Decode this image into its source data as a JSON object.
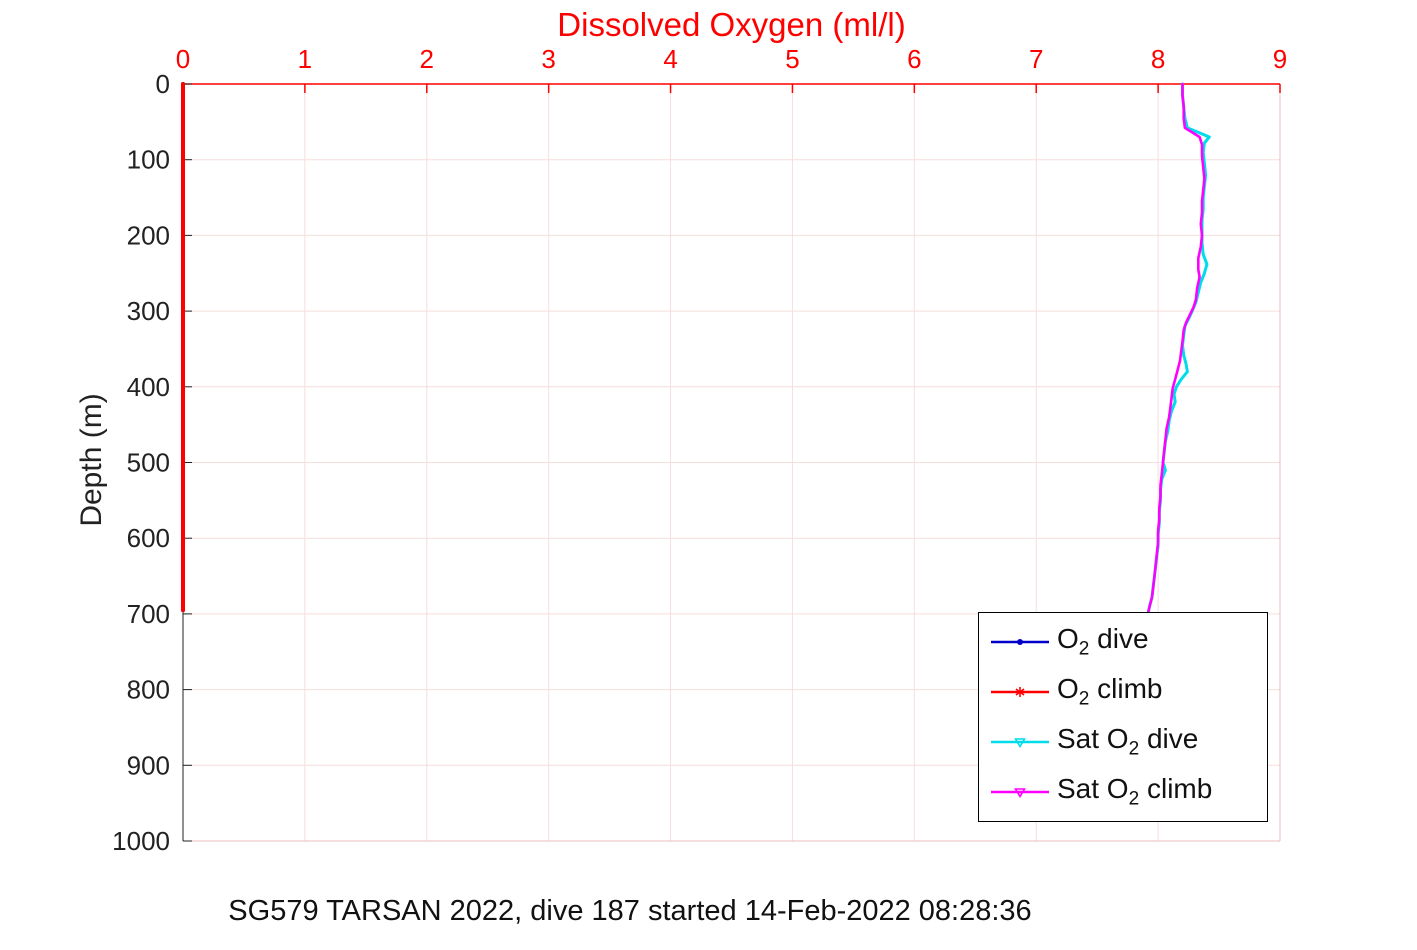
{
  "caption": "SG579 TARSAN 2022, dive 187 started 14-Feb-2022 08:28:36",
  "chart_data": {
    "type": "line",
    "title": "Dissolved Oxygen (ml/l)",
    "orientation": "depth-profile",
    "x_axis": {
      "label": "",
      "range": [
        0,
        9
      ],
      "ticks": [
        0,
        1,
        2,
        3,
        4,
        5,
        6,
        7,
        8,
        9
      ],
      "position": "top",
      "color": "#ff0000"
    },
    "y_axis": {
      "label": "Depth (m)",
      "range": [
        0,
        1000
      ],
      "ticks": [
        0,
        100,
        200,
        300,
        400,
        500,
        600,
        700,
        800,
        900,
        1000
      ],
      "direction": "down",
      "color": "#222222"
    },
    "style": {
      "grid_color": "#f6dede",
      "minor_spine_color": "#e9bcbc",
      "background": "#ffffff"
    },
    "legend_position": "lower-right-inside",
    "series": [
      {
        "id": "o2-dive",
        "name": "O2 dive",
        "color": "#0000c8",
        "linewidth": 4,
        "points": [
          [
            0,
            0
          ],
          [
            0,
            695
          ]
        ]
      },
      {
        "id": "o2-climb",
        "name": "O2 climb",
        "color": "#ff0000",
        "linewidth": 4,
        "points": [
          [
            0,
            0
          ],
          [
            0,
            695
          ]
        ]
      },
      {
        "id": "sat-o2-dive",
        "name": "Sat O2 dive",
        "color": "#00dcea",
        "linewidth": 3,
        "points": [
          [
            8.2,
            0
          ],
          [
            8.2,
            15
          ],
          [
            8.21,
            30
          ],
          [
            8.22,
            45
          ],
          [
            8.24,
            58
          ],
          [
            8.33,
            64
          ],
          [
            8.42,
            70
          ],
          [
            8.38,
            78
          ],
          [
            8.37,
            90
          ],
          [
            8.38,
            105
          ],
          [
            8.39,
            120
          ],
          [
            8.38,
            135
          ],
          [
            8.37,
            150
          ],
          [
            8.37,
            165
          ],
          [
            8.36,
            180
          ],
          [
            8.36,
            195
          ],
          [
            8.36,
            210
          ],
          [
            8.37,
            225
          ],
          [
            8.4,
            238
          ],
          [
            8.38,
            250
          ],
          [
            8.35,
            262
          ],
          [
            8.33,
            275
          ],
          [
            8.31,
            288
          ],
          [
            8.28,
            300
          ],
          [
            8.25,
            310
          ],
          [
            8.22,
            320
          ],
          [
            8.21,
            332
          ],
          [
            8.2,
            345
          ],
          [
            8.21,
            358
          ],
          [
            8.23,
            370
          ],
          [
            8.24,
            380
          ],
          [
            8.19,
            390
          ],
          [
            8.15,
            400
          ],
          [
            8.13,
            410
          ],
          [
            8.14,
            420
          ],
          [
            8.11,
            432
          ],
          [
            8.09,
            445
          ],
          [
            8.08,
            458
          ],
          [
            8.06,
            472
          ],
          [
            8.05,
            486
          ],
          [
            8.04,
            500
          ],
          [
            8.06,
            510
          ],
          [
            8.03,
            522
          ],
          [
            8.02,
            536
          ],
          [
            8.02,
            550
          ],
          [
            8.01,
            565
          ],
          [
            8.01,
            580
          ],
          [
            8.0,
            595
          ],
          [
            8.0,
            610
          ],
          [
            7.99,
            622
          ],
          [
            7.98,
            636
          ],
          [
            7.97,
            650
          ],
          [
            7.96,
            664
          ],
          [
            7.95,
            678
          ],
          [
            7.93,
            690
          ],
          [
            7.92,
            697
          ]
        ]
      },
      {
        "id": "sat-o2-climb",
        "name": "Sat O2 climb",
        "color": "#ff00ff",
        "linewidth": 2.6,
        "points": [
          [
            8.2,
            0
          ],
          [
            8.2,
            15
          ],
          [
            8.21,
            30
          ],
          [
            8.21,
            45
          ],
          [
            8.22,
            58
          ],
          [
            8.28,
            64
          ],
          [
            8.34,
            70
          ],
          [
            8.36,
            80
          ],
          [
            8.36,
            95
          ],
          [
            8.37,
            110
          ],
          [
            8.38,
            125
          ],
          [
            8.37,
            140
          ],
          [
            8.36,
            155
          ],
          [
            8.36,
            170
          ],
          [
            8.35,
            185
          ],
          [
            8.36,
            200
          ],
          [
            8.35,
            215
          ],
          [
            8.33,
            230
          ],
          [
            8.33,
            245
          ],
          [
            8.34,
            255
          ],
          [
            8.32,
            270
          ],
          [
            8.31,
            285
          ],
          [
            8.29,
            295
          ],
          [
            8.26,
            305
          ],
          [
            8.23,
            315
          ],
          [
            8.21,
            325
          ],
          [
            8.2,
            340
          ],
          [
            8.19,
            352
          ],
          [
            8.18,
            365
          ],
          [
            8.16,
            378
          ],
          [
            8.14,
            390
          ],
          [
            8.12,
            402
          ],
          [
            8.11,
            415
          ],
          [
            8.1,
            428
          ],
          [
            8.09,
            440
          ],
          [
            8.07,
            455
          ],
          [
            8.06,
            470
          ],
          [
            8.05,
            485
          ],
          [
            8.04,
            500
          ],
          [
            8.03,
            515
          ],
          [
            8.02,
            530
          ],
          [
            8.02,
            545
          ],
          [
            8.01,
            560
          ],
          [
            8.01,
            575
          ],
          [
            8.0,
            590
          ],
          [
            8.0,
            605
          ],
          [
            7.99,
            620
          ],
          [
            7.98,
            635
          ],
          [
            7.97,
            650
          ],
          [
            7.96,
            665
          ],
          [
            7.95,
            678
          ],
          [
            7.93,
            690
          ],
          [
            7.92,
            697
          ]
        ]
      }
    ]
  },
  "legend": {
    "entries": [
      {
        "pre": "O",
        "sub": "2",
        "post": " dive",
        "color": "#0000c8",
        "marker": "dot"
      },
      {
        "pre": "O",
        "sub": "2",
        "post": " climb",
        "color": "#ff0000",
        "marker": "asterisk"
      },
      {
        "pre": "Sat O",
        "sub": "2",
        "post": " dive",
        "color": "#00dcea",
        "marker": "triangle-down"
      },
      {
        "pre": "Sat O",
        "sub": "2",
        "post": " climb",
        "color": "#ff00ff",
        "marker": "triangle-down"
      }
    ]
  }
}
